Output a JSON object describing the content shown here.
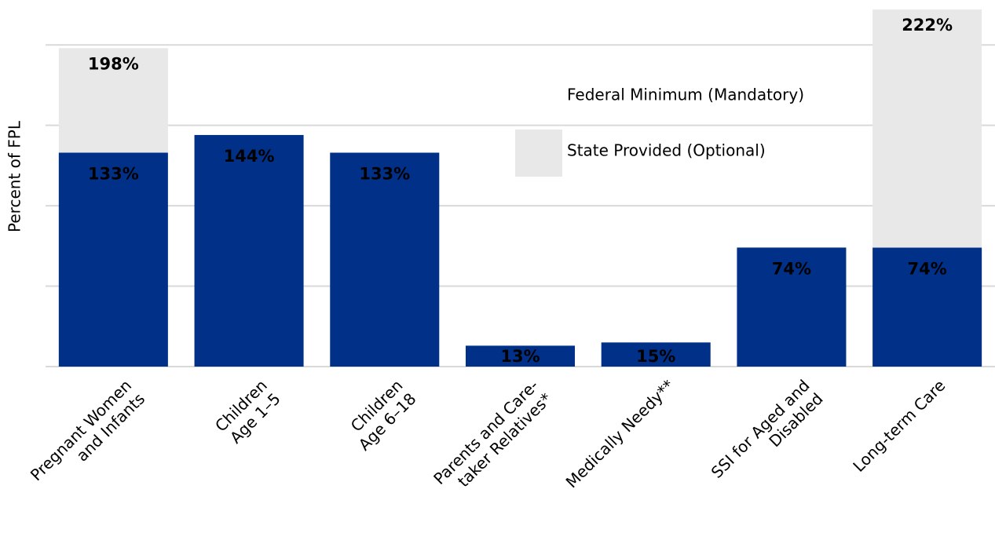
{
  "chart_data": {
    "type": "bar",
    "stacked": true,
    "ylabel": "Percent of FPL",
    "categories": [
      [
        "Pregnant Women",
        "and Infants"
      ],
      [
        "Children",
        "Age 1–5"
      ],
      [
        "Children",
        "Age 6–18"
      ],
      [
        "Parents and Care-",
        "taker Relatives*"
      ],
      [
        "Medically Needy**"
      ],
      [
        "SSI for Aged and",
        "Disabled"
      ],
      [
        "Long-term Care"
      ]
    ],
    "series": [
      {
        "name": "Federal Minimum (Mandatory)",
        "color": "#003087",
        "values": [
          133,
          144,
          133,
          13,
          15,
          74,
          74
        ],
        "value_labels": [
          "133%",
          "144%",
          "133%",
          "13%",
          "15%",
          "74%",
          "74%"
        ]
      },
      {
        "name": "State Provided (Optional)",
        "color": "#e8e8e8",
        "values": [
          65,
          0,
          0,
          0,
          0,
          0,
          148
        ]
      }
    ],
    "totals": [
      198,
      null,
      null,
      null,
      null,
      null,
      222
    ],
    "total_labels": [
      "198%",
      null,
      null,
      null,
      null,
      null,
      "222%"
    ],
    "ylim": [
      0,
      225
    ],
    "yticks": [
      0,
      50,
      100,
      150,
      200
    ],
    "grid": true
  }
}
